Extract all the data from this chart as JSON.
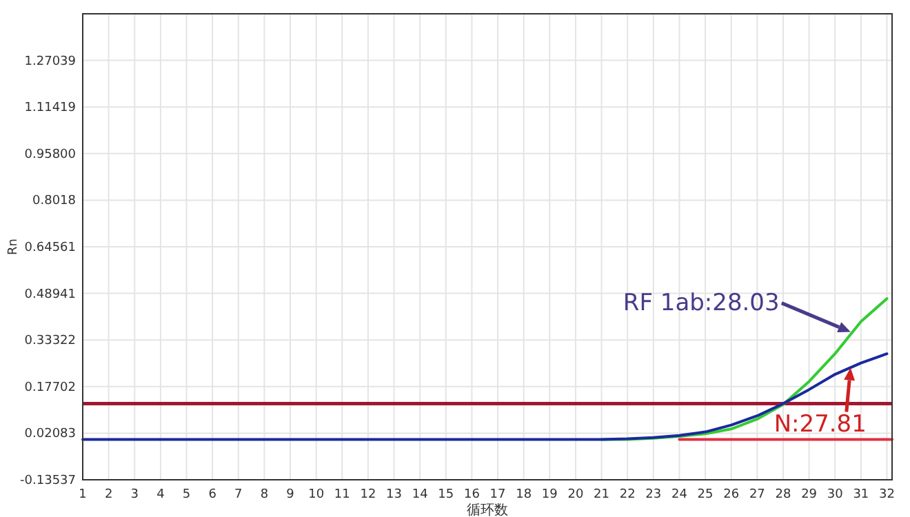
{
  "chart_data": {
    "type": "line",
    "xlabel": "循环数",
    "ylabel": "Rn",
    "x": [
      1,
      2,
      3,
      4,
      5,
      6,
      7,
      8,
      9,
      10,
      11,
      12,
      13,
      14,
      15,
      16,
      17,
      18,
      19,
      20,
      21,
      22,
      23,
      24,
      25,
      26,
      27,
      28,
      29,
      30,
      31,
      32
    ],
    "series": [
      {
        "color": "#33cc33",
        "values": [
          null,
          null,
          null,
          null,
          null,
          null,
          null,
          null,
          null,
          null,
          null,
          null,
          null,
          null,
          null,
          null,
          null,
          null,
          null,
          null,
          0,
          0,
          0.004,
          0.01,
          0.019,
          0.035,
          0.068,
          0.117,
          0.194,
          0.287,
          0.395,
          0.472
        ]
      },
      {
        "color": "#1a2a9c",
        "values": [
          0,
          0,
          0,
          0,
          0,
          0,
          0,
          0,
          0,
          0,
          0,
          0,
          0,
          0,
          0,
          0,
          0,
          0,
          0,
          0,
          0,
          0.002,
          0.006,
          0.013,
          0.025,
          0.048,
          0.079,
          0.12,
          0.167,
          0.218,
          0.256,
          0.287
        ]
      },
      {
        "color": "#e03040",
        "x": [
          24,
          32.2
        ],
        "values": [
          0,
          0
        ]
      }
    ],
    "xlim": [
      1,
      32.2
    ],
    "ylim": [
      -0.13537,
      1.42658
    ],
    "xticks": [
      1,
      2,
      3,
      4,
      5,
      6,
      7,
      8,
      9,
      10,
      11,
      12,
      13,
      14,
      15,
      16,
      17,
      18,
      19,
      20,
      21,
      22,
      23,
      24,
      25,
      26,
      27,
      28,
      29,
      30,
      31,
      32
    ],
    "yticks": [
      -0.13537,
      0.02083,
      0.17702,
      0.33322,
      0.48941,
      0.64561,
      {
        "value": 0.958,
        "label": "0.95800"
      },
      0.8018,
      1.11419,
      1.27039
    ],
    "ref_lines": [
      {
        "axis": "y",
        "value": 0.12,
        "color": "#a01830"
      }
    ],
    "grid": true,
    "annotations": [
      {
        "text": "RF 1ab:28.03",
        "x": 30.6,
        "y": 0.36
      },
      {
        "text": "N:27.81",
        "x": 30.6,
        "y": 0.24
      }
    ]
  }
}
